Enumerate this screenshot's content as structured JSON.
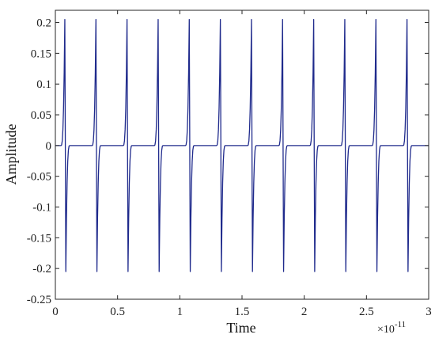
{
  "chart_data": {
    "type": "line",
    "title": "",
    "xlabel": "Time",
    "ylabel": "Amplitude",
    "x_exponent_base": "×10",
    "x_exponent_power": "-11",
    "xlim": [
      0,
      3
    ],
    "ylim": [
      -0.25,
      0.22
    ],
    "x_ticks": [
      0,
      0.5,
      1,
      1.5,
      2,
      2.5,
      3
    ],
    "x_tick_labels": [
      "0",
      "0.5",
      "1",
      "1.5",
      "2",
      "2.5",
      "3"
    ],
    "y_ticks": [
      -0.25,
      -0.2,
      -0.15,
      -0.1,
      -0.05,
      0,
      0.05,
      0.1,
      0.15,
      0.2
    ],
    "y_tick_labels": [
      "-0.25",
      "-0.2",
      "-0.15",
      "-0.1",
      "-0.05",
      "0",
      "0.05",
      "0.1",
      "0.15",
      "0.2"
    ],
    "grid": false,
    "series_color": "#1f2a8c",
    "series": [
      {
        "name": "",
        "pulse_period": 0.25,
        "first_pulse_center": 0.08,
        "pulse_count": 12,
        "positive_peak": 0.205,
        "negative_peak": -0.205,
        "baseline": 0,
        "pulse_centers": [
          0.08,
          0.33,
          0.58,
          0.83,
          1.08,
          1.33,
          1.58,
          1.83,
          2.08,
          2.33,
          2.58,
          2.83
        ]
      }
    ]
  }
}
